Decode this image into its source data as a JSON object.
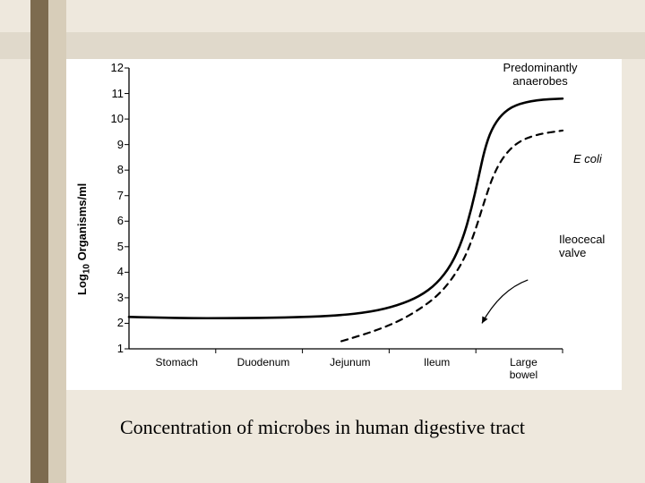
{
  "caption": "Concentration of microbes in human digestive tract",
  "chart": {
    "type": "line",
    "background_color": "#ffffff",
    "slide_bg": "#eee8dd",
    "sidebar_dark": "#7d6b4f",
    "sidebar_light": "#d7cdb9",
    "top_band": "#e0d9cb",
    "axis_color": "#000000",
    "ylabel_html": "Log<sub>10</sub> Organisms/ml",
    "ylabel_fontsize": 13,
    "xlim": [
      0,
      5
    ],
    "ylim": [
      1,
      12
    ],
    "yticks": [
      1,
      2,
      3,
      4,
      5,
      6,
      7,
      8,
      9,
      10,
      11,
      12
    ],
    "xticks": [
      {
        "pos": 0.55,
        "label": "Stomach"
      },
      {
        "pos": 1.55,
        "label": "Duodenum"
      },
      {
        "pos": 2.55,
        "label": "Jejunum"
      },
      {
        "pos": 3.55,
        "label": "Ileum"
      },
      {
        "pos": 4.55,
        "label": "Large\nbowel"
      }
    ],
    "series": [
      {
        "name": "total",
        "stroke": "#000000",
        "stroke_width": 2.6,
        "dash": "none",
        "points": [
          [
            0.0,
            2.25
          ],
          [
            0.6,
            2.2
          ],
          [
            1.2,
            2.2
          ],
          [
            1.8,
            2.22
          ],
          [
            2.4,
            2.3
          ],
          [
            2.8,
            2.45
          ],
          [
            3.1,
            2.7
          ],
          [
            3.35,
            3.05
          ],
          [
            3.55,
            3.55
          ],
          [
            3.72,
            4.3
          ],
          [
            3.85,
            5.3
          ],
          [
            3.95,
            6.5
          ],
          [
            4.03,
            7.7
          ],
          [
            4.1,
            8.8
          ],
          [
            4.18,
            9.6
          ],
          [
            4.3,
            10.2
          ],
          [
            4.45,
            10.55
          ],
          [
            4.7,
            10.75
          ],
          [
            5.0,
            10.8
          ]
        ]
      },
      {
        "name": "ecoli",
        "stroke": "#000000",
        "stroke_width": 2.2,
        "dash": "7 6",
        "points": [
          [
            2.45,
            1.3
          ],
          [
            2.7,
            1.55
          ],
          [
            2.95,
            1.85
          ],
          [
            3.15,
            2.15
          ],
          [
            3.35,
            2.55
          ],
          [
            3.55,
            3.05
          ],
          [
            3.72,
            3.7
          ],
          [
            3.88,
            4.6
          ],
          [
            4.0,
            5.7
          ],
          [
            4.1,
            6.8
          ],
          [
            4.2,
            7.8
          ],
          [
            4.32,
            8.55
          ],
          [
            4.48,
            9.1
          ],
          [
            4.7,
            9.4
          ],
          [
            5.0,
            9.55
          ]
        ]
      }
    ],
    "annotations": {
      "predominantly": {
        "text_l1": "Predominantly",
        "text_l2": "anaerobes"
      },
      "ecoli": "E coli",
      "ileocecal_l1": "Ileocecal",
      "ileocecal_l2": "valve"
    },
    "arrow": {
      "from": [
        4.6,
        3.7
      ],
      "ctrl": [
        4.28,
        3.3
      ],
      "to": [
        4.07,
        2.0
      ],
      "stroke": "#000000",
      "stroke_width": 1.3
    }
  }
}
